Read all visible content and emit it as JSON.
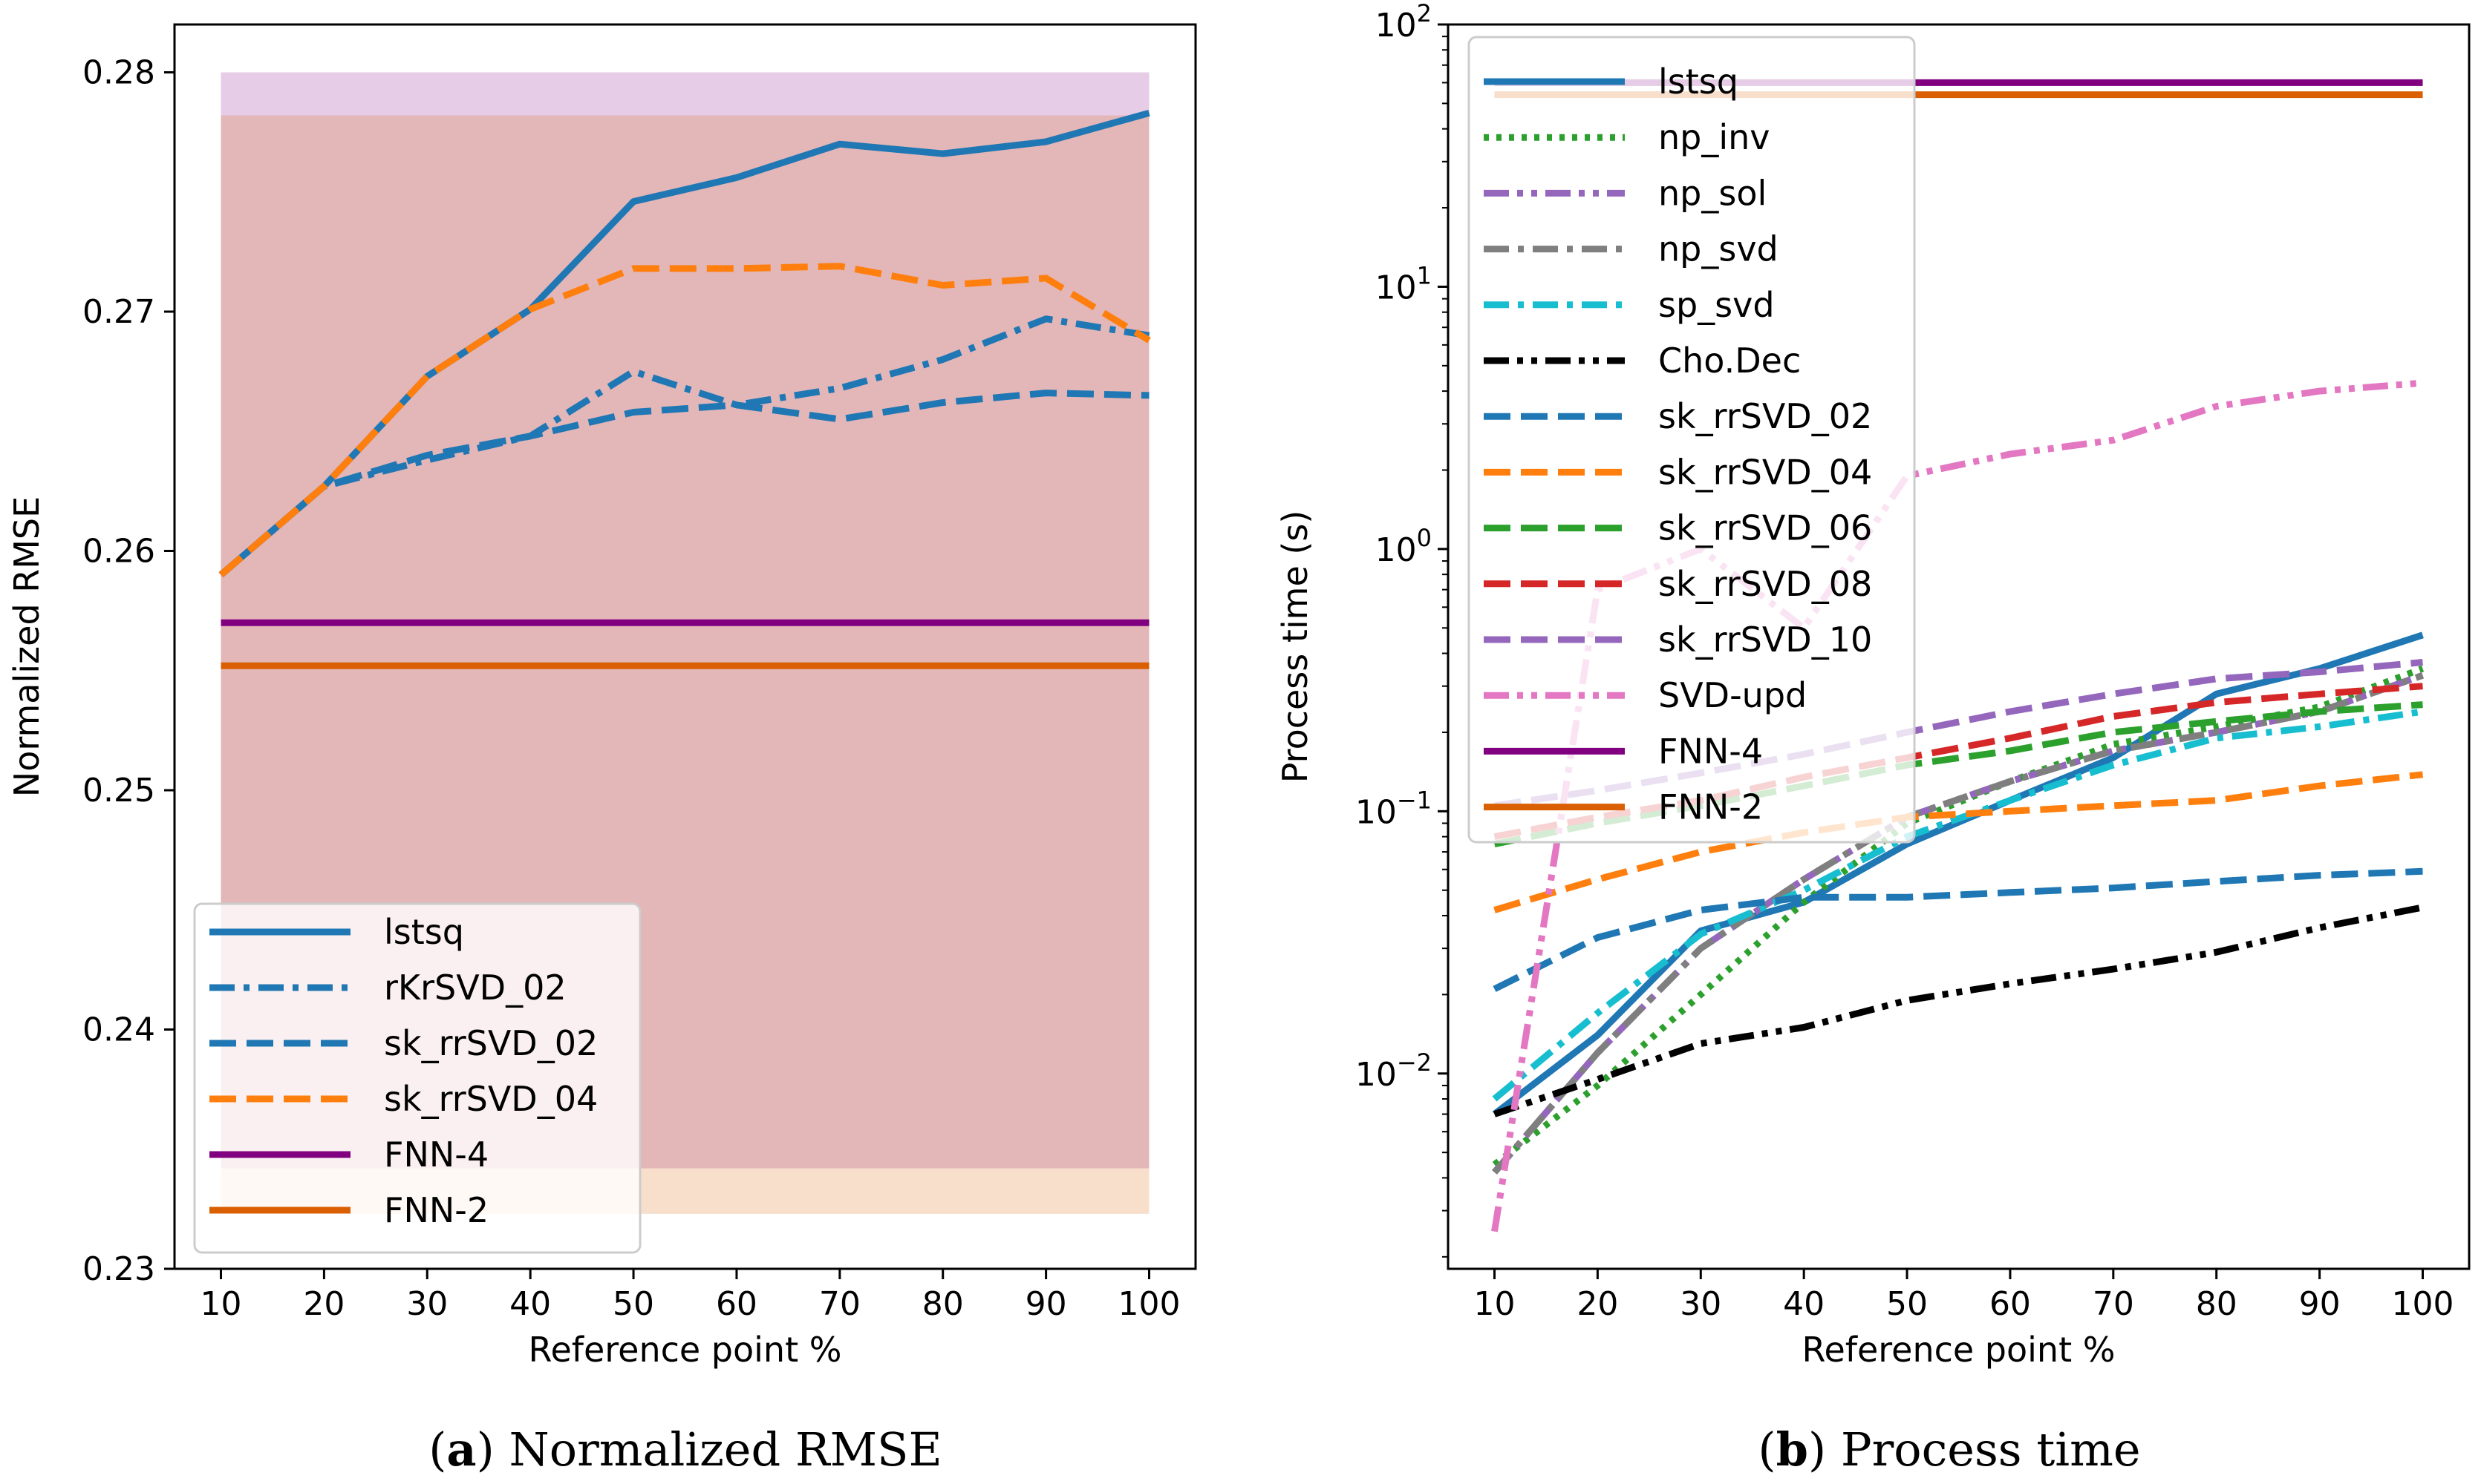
{
  "chart_data": [
    {
      "id": "a",
      "type": "line",
      "caption_letter": "a",
      "caption_text": "Normalized RMSE",
      "xlabel": "Reference point %",
      "ylabel": "Normalized RMSE",
      "yscale": "linear",
      "xlim": [
        5.5,
        104.5
      ],
      "ylim": [
        0.23,
        0.282
      ],
      "x": [
        10,
        20,
        30,
        40,
        50,
        60,
        70,
        80,
        90,
        100
      ],
      "xticks": [
        10,
        20,
        30,
        40,
        50,
        60,
        70,
        80,
        90,
        100
      ],
      "xtick_labels": [
        "10",
        "20",
        "30",
        "40",
        "50",
        "60",
        "70",
        "80",
        "90",
        "100"
      ],
      "yticks": [
        0.23,
        0.24,
        0.25,
        0.26,
        0.27,
        0.28
      ],
      "ytick_labels": [
        "0.23",
        "0.24",
        "0.25",
        "0.26",
        "0.27",
        "0.28"
      ],
      "legend_position": "lower-left",
      "bands": [
        {
          "name": "FNN-4 range",
          "y0": 0.2342,
          "y1": 0.28,
          "color": "#800080",
          "opacity": 0.2
        },
        {
          "name": "FNN-2 range",
          "y0": 0.2323,
          "y1": 0.2782,
          "color": "#d95f02",
          "opacity": 0.2
        }
      ],
      "series": [
        {
          "name": "lstsq",
          "color": "#1f77b4",
          "dash": "solid",
          "values": [
            0.259,
            0.2627,
            0.2673,
            0.2701,
            0.2746,
            0.2756,
            0.277,
            0.2766,
            0.2771,
            0.2783
          ]
        },
        {
          "name": "rKrSVD_02",
          "color": "#1f77b4",
          "dash": "dashdot",
          "values": [
            0.259,
            0.2627,
            0.2638,
            0.2648,
            0.2675,
            0.2661,
            0.2668,
            0.268,
            0.2697,
            0.269
          ]
        },
        {
          "name": "sk_rrSVD_02",
          "color": "#1f77b4",
          "dash": "dashed",
          "values": [
            0.259,
            0.2627,
            0.264,
            0.2648,
            0.2658,
            0.2661,
            0.2655,
            0.2662,
            0.2666,
            0.2665
          ]
        },
        {
          "name": "sk_rrSVD_04",
          "color": "#ff7f0e",
          "dash": "dashed",
          "values": [
            0.259,
            0.2627,
            0.2673,
            0.2701,
            0.2718,
            0.2718,
            0.2719,
            0.2711,
            0.2714,
            0.2688
          ]
        },
        {
          "name": "FNN-4",
          "color": "#800080",
          "dash": "solid",
          "values": [
            0.257,
            0.257,
            0.257,
            0.257,
            0.257,
            0.257,
            0.257,
            0.257,
            0.257,
            0.257
          ]
        },
        {
          "name": "FNN-2",
          "color": "#d95f02",
          "dash": "solid",
          "values": [
            0.2552,
            0.2552,
            0.2552,
            0.2552,
            0.2552,
            0.2552,
            0.2552,
            0.2552,
            0.2552,
            0.2552
          ]
        }
      ]
    },
    {
      "id": "b",
      "type": "line",
      "caption_letter": "b",
      "caption_text": "Process time",
      "xlabel": "Reference point %",
      "ylabel": "Process time (s)",
      "yscale": "log",
      "xlim": [
        5.5,
        104.5
      ],
      "ylim": [
        0.0018,
        100
      ],
      "x": [
        10,
        20,
        30,
        40,
        50,
        60,
        70,
        80,
        90,
        100
      ],
      "xticks": [
        10,
        20,
        30,
        40,
        50,
        60,
        70,
        80,
        90,
        100
      ],
      "xtick_labels": [
        "10",
        "20",
        "30",
        "40",
        "50",
        "60",
        "70",
        "80",
        "90",
        "100"
      ],
      "yticks": [
        0.01,
        0.1,
        1,
        10,
        100
      ],
      "ytick_labels": [
        {
          "base": "10",
          "exp": "−2"
        },
        {
          "base": "10",
          "exp": "−1"
        },
        {
          "base": "10",
          "exp": "0"
        },
        {
          "base": "10",
          "exp": "1"
        },
        {
          "base": "10",
          "exp": "2"
        }
      ],
      "legend_position": "upper-left",
      "series": [
        {
          "name": "lstsq",
          "color": "#1f77b4",
          "dash": "solid",
          "values": [
            0.007,
            0.014,
            0.035,
            0.045,
            0.075,
            0.11,
            0.16,
            0.28,
            0.35,
            0.47
          ]
        },
        {
          "name": "np_inv",
          "color": "#2ca02c",
          "dash": "dotted",
          "values": [
            0.0045,
            0.009,
            0.02,
            0.045,
            0.09,
            0.13,
            0.18,
            0.21,
            0.25,
            0.35
          ]
        },
        {
          "name": "np_sol",
          "color": "#9467bd",
          "dash": "dashdotdot",
          "values": [
            0.0042,
            0.012,
            0.03,
            0.055,
            0.095,
            0.13,
            0.17,
            0.2,
            0.24,
            0.33
          ]
        },
        {
          "name": "np_svd",
          "color": "#7f7f7f",
          "dash": "dashdot",
          "values": [
            0.0042,
            0.012,
            0.03,
            0.055,
            0.095,
            0.13,
            0.17,
            0.2,
            0.24,
            0.33
          ]
        },
        {
          "name": "sp_svd",
          "color": "#17becf",
          "dash": "dashdot",
          "values": [
            0.008,
            0.017,
            0.034,
            0.05,
            0.08,
            0.11,
            0.15,
            0.19,
            0.21,
            0.24
          ]
        },
        {
          "name": "Cho.Dec",
          "color": "#000000",
          "dash": "dashdotdot",
          "values": [
            0.007,
            0.0095,
            0.013,
            0.015,
            0.019,
            0.022,
            0.025,
            0.029,
            0.036,
            0.043
          ]
        },
        {
          "name": "sk_rrSVD_02",
          "color": "#1f77b4",
          "dash": "dashed",
          "values": [
            0.021,
            0.033,
            0.042,
            0.047,
            0.047,
            0.049,
            0.051,
            0.054,
            0.057,
            0.059
          ]
        },
        {
          "name": "sk_rrSVD_04",
          "color": "#ff7f0e",
          "dash": "dashed",
          "values": [
            0.042,
            0.055,
            0.07,
            0.083,
            0.095,
            0.1,
            0.105,
            0.11,
            0.125,
            0.138
          ]
        },
        {
          "name": "sk_rrSVD_06",
          "color": "#2ca02c",
          "dash": "dashed",
          "values": [
            0.075,
            0.09,
            0.105,
            0.125,
            0.15,
            0.17,
            0.2,
            0.22,
            0.24,
            0.255
          ]
        },
        {
          "name": "sk_rrSVD_08",
          "color": "#d62728",
          "dash": "dashed",
          "values": [
            0.08,
            0.095,
            0.11,
            0.135,
            0.16,
            0.19,
            0.23,
            0.26,
            0.28,
            0.3
          ]
        },
        {
          "name": "sk_rrSVD_10",
          "color": "#9467bd",
          "dash": "dashed",
          "values": [
            0.105,
            0.12,
            0.14,
            0.165,
            0.2,
            0.24,
            0.28,
            0.32,
            0.34,
            0.37
          ]
        },
        {
          "name": "SVD-upd",
          "color": "#e377c2",
          "dash": "dashdotdot",
          "values": [
            0.0025,
            0.7,
            1.0,
            0.5,
            1.9,
            2.3,
            2.6,
            3.5,
            4.0,
            4.3
          ]
        },
        {
          "name": "FNN-4",
          "color": "#800080",
          "dash": "solid",
          "values": [
            60,
            60,
            60,
            60,
            60,
            60,
            60,
            60,
            60,
            60
          ]
        },
        {
          "name": "FNN-2",
          "color": "#d95f02",
          "dash": "solid",
          "values": [
            54,
            54,
            54,
            54,
            54,
            54,
            54,
            54,
            54,
            54
          ]
        }
      ]
    }
  ]
}
